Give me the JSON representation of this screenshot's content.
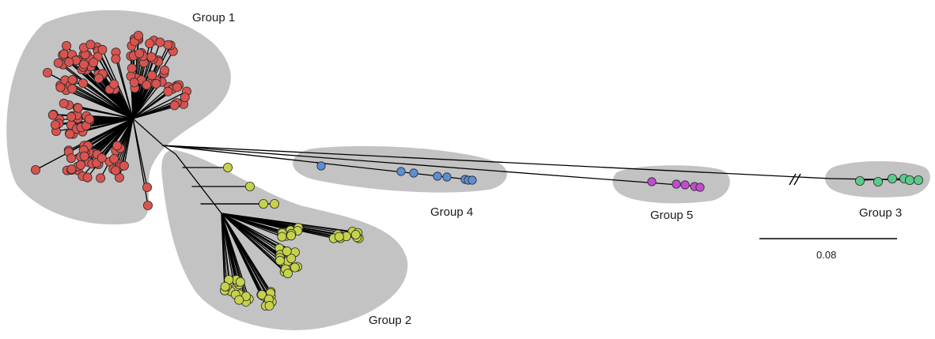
{
  "groups": [
    {
      "id": "group-1",
      "label": "Group 1",
      "color": "#d9534f"
    },
    {
      "id": "group-2",
      "label": "Group 2",
      "color": "#c6d34a"
    },
    {
      "id": "group-3",
      "label": "Group 3",
      "color": "#5cc98a"
    },
    {
      "id": "group-4",
      "label": "Group 4",
      "color": "#5b8fd6"
    },
    {
      "id": "group-5",
      "label": "Group 5",
      "color": "#c04ccf"
    }
  ],
  "scale_bar": {
    "label": "0.08",
    "value": 0.08
  },
  "hull_color": "#c3c3c3"
}
